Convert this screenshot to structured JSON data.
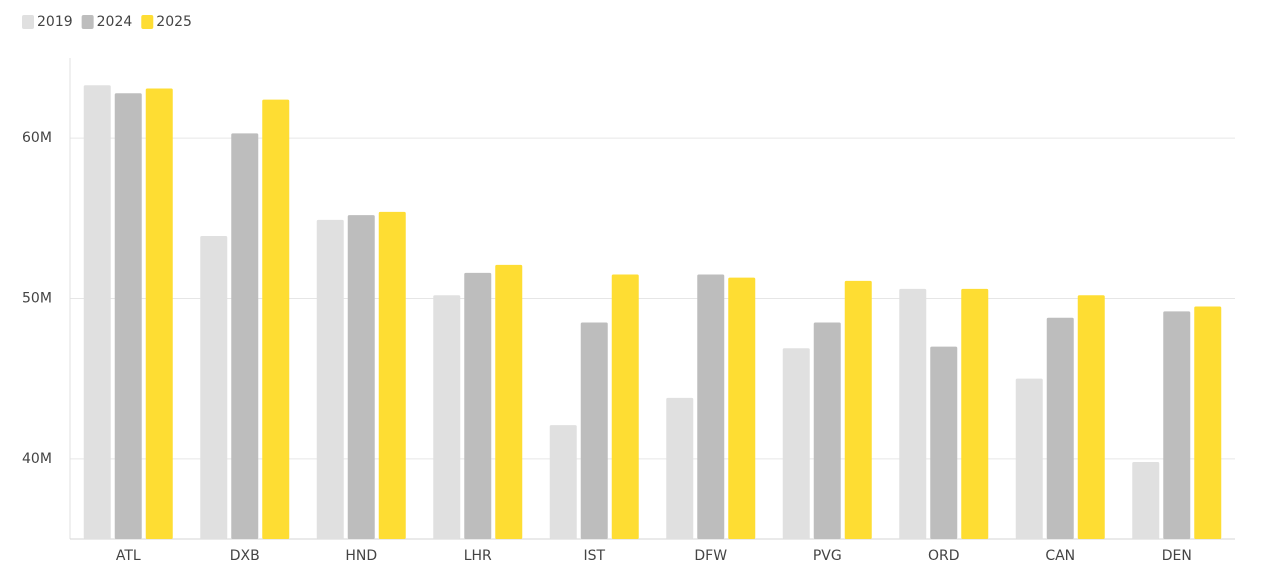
{
  "chart_data": {
    "type": "bar",
    "categories": [
      "ATL",
      "DXB",
      "HND",
      "LHR",
      "IST",
      "DFW",
      "PVG",
      "ORD",
      "CAN",
      "DEN"
    ],
    "series": [
      {
        "name": "2019",
        "color": "#e0e0e0",
        "values": [
          63300000,
          53900000,
          54900000,
          50200000,
          42100000,
          43800000,
          46900000,
          50600000,
          45000000,
          39800000
        ]
      },
      {
        "name": "2024",
        "color": "#bdbdbd",
        "values": [
          62800000,
          60300000,
          55200000,
          51600000,
          48500000,
          51500000,
          48500000,
          47000000,
          48800000,
          49200000
        ]
      },
      {
        "name": "2025",
        "color": "#fedd33",
        "values": [
          63100000,
          62400000,
          55400000,
          52100000,
          51500000,
          51300000,
          51100000,
          50600000,
          50200000,
          49500000
        ]
      }
    ],
    "ylim": [
      35000000,
      65000000
    ],
    "yticks": [
      {
        "value": 40000000,
        "label": "40M"
      },
      {
        "value": 50000000,
        "label": "50M"
      },
      {
        "value": 60000000,
        "label": "60M"
      }
    ],
    "grid": true,
    "legend": "top-left"
  }
}
